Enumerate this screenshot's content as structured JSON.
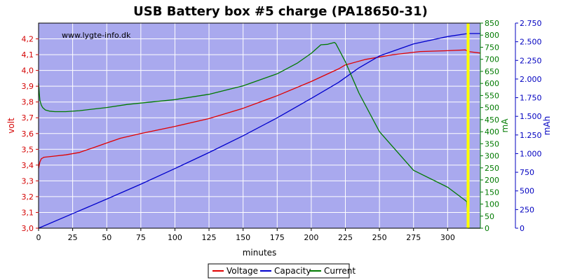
{
  "chart_data": {
    "type": "line",
    "title": "USB Battery box #5 charge (PA18650-31)",
    "watermark": "www.lygte-info.dk",
    "xlabel": "minutes",
    "xlim": [
      0,
      324
    ],
    "xticks": [
      0,
      25,
      50,
      75,
      100,
      125,
      150,
      175,
      200,
      225,
      250,
      275,
      300
    ],
    "grid": true,
    "plot_background": "#a9a9ee",
    "marker": {
      "x": 315,
      "color": "#ffff00"
    },
    "axes": {
      "volt": {
        "label": "volt",
        "color": "#d40000",
        "side": "left",
        "lim": [
          3.0,
          4.3
        ],
        "ticks": [
          "3,0",
          "3,1",
          "3,2",
          "3,3",
          "3,4",
          "3,5",
          "3,6",
          "3,7",
          "3,8",
          "3,9",
          "4,0",
          "4,1",
          "4,2"
        ]
      },
      "mA": {
        "label": "mA",
        "color": "#007a00",
        "side": "right",
        "lim": [
          0,
          850
        ],
        "ticks": [
          "0",
          "50",
          "100",
          "150",
          "200",
          "250",
          "300",
          "350",
          "400",
          "450",
          "500",
          "550",
          "600",
          "650",
          "700",
          "750",
          "800",
          "850"
        ]
      },
      "mAh": {
        "label": "mAh",
        "color": "#0000c0",
        "side": "right",
        "lim": [
          0,
          2750
        ],
        "ticks": [
          "0",
          "250",
          "500",
          "750",
          "1.000",
          "1.250",
          "1.500",
          "1.750",
          "2.000",
          "2.250",
          "2.500",
          "2.750"
        ]
      }
    },
    "legend_position": "bottom",
    "series": [
      {
        "name": "Voltage",
        "axis": "volt",
        "color": "#e00000",
        "x": [
          0,
          1,
          2,
          4,
          10,
          20,
          30,
          40,
          50,
          60,
          75,
          100,
          125,
          150,
          175,
          200,
          210,
          220,
          225,
          240,
          260,
          280,
          300,
          313,
          315,
          324
        ],
        "y": [
          3.38,
          3.42,
          3.44,
          3.45,
          3.455,
          3.465,
          3.48,
          3.51,
          3.54,
          3.57,
          3.6,
          3.645,
          3.695,
          3.76,
          3.84,
          3.93,
          3.97,
          4.01,
          4.035,
          4.07,
          4.1,
          4.12,
          4.125,
          4.13,
          4.12,
          4.11
        ]
      },
      {
        "name": "Capacity",
        "axis": "mAh",
        "color": "#0000cc",
        "x": [
          0,
          25,
          50,
          75,
          100,
          125,
          150,
          175,
          200,
          220,
          235,
          250,
          275,
          300,
          315,
          324
        ],
        "y": [
          0,
          195,
          390,
          590,
          800,
          1015,
          1240,
          1480,
          1740,
          1955,
          2150,
          2310,
          2470,
          2570,
          2610,
          2610
        ]
      },
      {
        "name": "Current",
        "axis": "mA",
        "color": "#007a00",
        "x": [
          0,
          0.5,
          1,
          2,
          3,
          5,
          8,
          12,
          20,
          30,
          50,
          65,
          100,
          125,
          150,
          175,
          190,
          200,
          207,
          212,
          217,
          218,
          225,
          235,
          250,
          275,
          300,
          313,
          314,
          315,
          324
        ],
        "y": [
          600,
          560,
          530,
          510,
          500,
          490,
          485,
          483,
          483,
          487,
          500,
          513,
          533,
          555,
          590,
          640,
          685,
          725,
          760,
          762,
          770,
          765,
          690,
          560,
          400,
          240,
          170,
          115,
          110,
          0,
          0
        ]
      }
    ]
  }
}
